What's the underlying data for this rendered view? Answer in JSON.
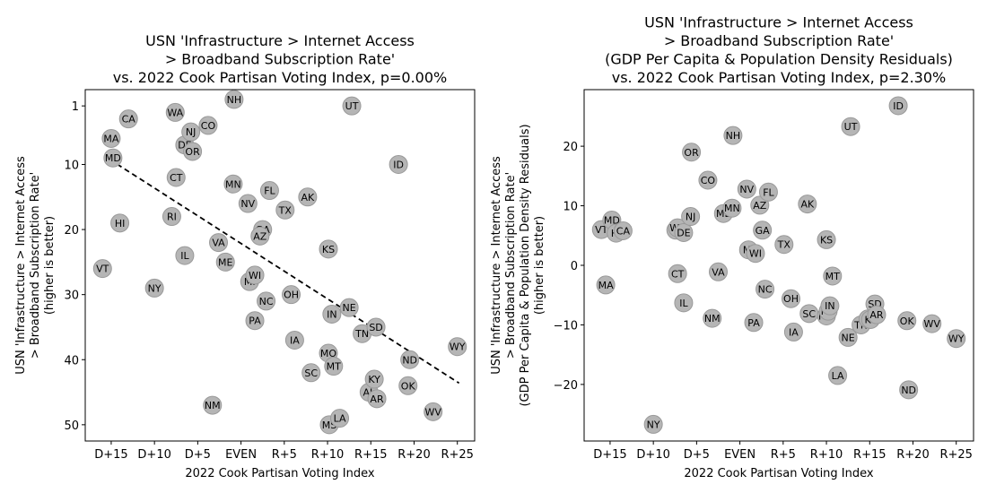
{
  "chart_data": [
    {
      "type": "scatter",
      "title": "USN 'Infrastructure > Internet Access\n> Broadband Subscription Rate'\nvs. 2022 Cook Partisan Voting Index, p=0.00%",
      "xlabel": "2022 Cook Partisan Voting Index",
      "ylabel": "USN 'Infrastructure > Internet Access\n> Broadband Subscription Rate'\n(higher is better)",
      "xlim": [
        -18,
        27
      ],
      "ylim": [
        52.5,
        -1.5
      ],
      "y_inverted": true,
      "xticks": [
        {
          "v": -15,
          "label": "D+15"
        },
        {
          "v": -10,
          "label": "D+10"
        },
        {
          "v": -5,
          "label": "D+5"
        },
        {
          "v": 0,
          "label": "EVEN"
        },
        {
          "v": 5,
          "label": "R+5"
        },
        {
          "v": 10,
          "label": "R+10"
        },
        {
          "v": 15,
          "label": "R+15"
        },
        {
          "v": 20,
          "label": "R+20"
        },
        {
          "v": 25,
          "label": "R+25"
        }
      ],
      "yticks": [
        {
          "v": 1,
          "label": "1"
        },
        {
          "v": 10,
          "label": "10"
        },
        {
          "v": 20,
          "label": "20"
        },
        {
          "v": 30,
          "label": "30"
        },
        {
          "v": 40,
          "label": "40"
        },
        {
          "v": 50,
          "label": "50"
        }
      ],
      "trendline": {
        "x": [
          -15.2,
          25.2
        ],
        "y": [
          9.2,
          43.6
        ]
      },
      "points": [
        {
          "label": "CA",
          "x": -13,
          "y": 3
        },
        {
          "label": "MA",
          "x": -15,
          "y": 6
        },
        {
          "label": "MD",
          "x": -14.8,
          "y": 9
        },
        {
          "label": "HI",
          "x": -14,
          "y": 19
        },
        {
          "label": "VT",
          "x": -16,
          "y": 26
        },
        {
          "label": "NY",
          "x": -10,
          "y": 29
        },
        {
          "label": "RI",
          "x": -8,
          "y": 18
        },
        {
          "label": "CT",
          "x": -7.5,
          "y": 12
        },
        {
          "label": "WA",
          "x": -7.6,
          "y": 2
        },
        {
          "label": "DE",
          "x": -6.5,
          "y": 7
        },
        {
          "label": "NJ",
          "x": -5.8,
          "y": 5
        },
        {
          "label": "OR",
          "x": -5.6,
          "y": 8
        },
        {
          "label": "IL",
          "x": -6.5,
          "y": 24
        },
        {
          "label": "CO",
          "x": -3.8,
          "y": 4
        },
        {
          "label": "NM",
          "x": -3.3,
          "y": 47
        },
        {
          "label": "VA",
          "x": -2.6,
          "y": 22
        },
        {
          "label": "ME",
          "x": -1.8,
          "y": 25
        },
        {
          "label": "MN",
          "x": -0.9,
          "y": 13
        },
        {
          "label": "NH",
          "x": -0.8,
          "y": 0
        },
        {
          "label": "NV",
          "x": 0.8,
          "y": 16
        },
        {
          "label": "MI",
          "x": 1.0,
          "y": 28
        },
        {
          "label": "WI",
          "x": 1.6,
          "y": 27
        },
        {
          "label": "PA",
          "x": 1.6,
          "y": 34
        },
        {
          "label": "GA",
          "x": 2.5,
          "y": 20
        },
        {
          "label": "AZ",
          "x": 2.2,
          "y": 21
        },
        {
          "label": "NC",
          "x": 2.9,
          "y": 31
        },
        {
          "label": "FL",
          "x": 3.3,
          "y": 14
        },
        {
          "label": "TX",
          "x": 5.1,
          "y": 17
        },
        {
          "label": "OH",
          "x": 5.8,
          "y": 30
        },
        {
          "label": "IA",
          "x": 6.2,
          "y": 37
        },
        {
          "label": "AK",
          "x": 7.7,
          "y": 15
        },
        {
          "label": "SC",
          "x": 8.1,
          "y": 42
        },
        {
          "label": "KS",
          "x": 10.1,
          "y": 23
        },
        {
          "label": "MO",
          "x": 10.1,
          "y": 39
        },
        {
          "label": "MS",
          "x": 10.2,
          "y": 50
        },
        {
          "label": "IN",
          "x": 10.5,
          "y": 33
        },
        {
          "label": "MT",
          "x": 10.7,
          "y": 41
        },
        {
          "label": "LA",
          "x": 11.4,
          "y": 49
        },
        {
          "label": "NE",
          "x": 12.5,
          "y": 32
        },
        {
          "label": "UT",
          "x": 12.8,
          "y": 1
        },
        {
          "label": "TN",
          "x": 14.0,
          "y": 36
        },
        {
          "label": "AL",
          "x": 14.8,
          "y": 45
        },
        {
          "label": "KY",
          "x": 15.4,
          "y": 43
        },
        {
          "label": "SD",
          "x": 15.6,
          "y": 35
        },
        {
          "label": "AR",
          "x": 15.7,
          "y": 46
        },
        {
          "label": "ID",
          "x": 18.2,
          "y": 10
        },
        {
          "label": "ND",
          "x": 19.5,
          "y": 40
        },
        {
          "label": "OK",
          "x": 19.3,
          "y": 44
        },
        {
          "label": "WV",
          "x": 22.2,
          "y": 48
        },
        {
          "label": "WY",
          "x": 25.0,
          "y": 38
        }
      ]
    },
    {
      "type": "scatter",
      "title": "USN 'Infrastructure > Internet Access\n> Broadband Subscription Rate'\n(GDP Per Capita & Population Density Residuals)\nvs. 2022 Cook Partisan Voting Index, p=2.30%",
      "xlabel": "2022 Cook Partisan Voting Index",
      "ylabel": "USN 'Infrastructure > Internet Access\n> Broadband Subscription Rate'\n(GDP Per Capita & Population Density Residuals)\n(higher is better)",
      "xlim": [
        -18,
        27
      ],
      "ylim": [
        -29.5,
        29.5
      ],
      "y_inverted": false,
      "xticks": [
        {
          "v": -15,
          "label": "D+15"
        },
        {
          "v": -10,
          "label": "D+10"
        },
        {
          "v": -5,
          "label": "D+5"
        },
        {
          "v": 0,
          "label": "EVEN"
        },
        {
          "v": 5,
          "label": "R+5"
        },
        {
          "v": 10,
          "label": "R+10"
        },
        {
          "v": 15,
          "label": "R+15"
        },
        {
          "v": 20,
          "label": "R+20"
        },
        {
          "v": 25,
          "label": "R+25"
        }
      ],
      "yticks": [
        {
          "v": 20,
          "label": "20"
        },
        {
          "v": 10,
          "label": "10"
        },
        {
          "v": 0,
          "label": "0"
        },
        {
          "v": -10,
          "label": "−10"
        },
        {
          "v": -20,
          "label": "−20"
        }
      ],
      "points": [
        {
          "label": "VT",
          "x": -16,
          "y": 6
        },
        {
          "label": "MD",
          "x": -14.8,
          "y": 7.6
        },
        {
          "label": "HI",
          "x": -14.3,
          "y": 5.4
        },
        {
          "label": "CA",
          "x": -13.5,
          "y": 5.8
        },
        {
          "label": "MA",
          "x": -15.5,
          "y": -3.3
        },
        {
          "label": "NY",
          "x": -10,
          "y": -26.7
        },
        {
          "label": "RI",
          "x": -7.4,
          "y": 5.9
        },
        {
          "label": "WA",
          "x": -7.2,
          "y": 6.3
        },
        {
          "label": "DE",
          "x": -6.5,
          "y": 5.5
        },
        {
          "label": "CT",
          "x": -7.2,
          "y": -1.4
        },
        {
          "label": "IL",
          "x": -6.5,
          "y": -6.3
        },
        {
          "label": "NJ",
          "x": -5.7,
          "y": 8.2
        },
        {
          "label": "OR",
          "x": -5.6,
          "y": 19
        },
        {
          "label": "NM",
          "x": -3.2,
          "y": -8.9
        },
        {
          "label": "CO",
          "x": -3.7,
          "y": 14.3
        },
        {
          "label": "VA",
          "x": -2.5,
          "y": -1.1
        },
        {
          "label": "ME",
          "x": -1.9,
          "y": 8.7
        },
        {
          "label": "NH",
          "x": -0.8,
          "y": 21.8
        },
        {
          "label": "MN",
          "x": -0.9,
          "y": 9.6
        },
        {
          "label": "NV",
          "x": 0.8,
          "y": 12.8
        },
        {
          "label": "MI",
          "x": 1.0,
          "y": 2.6
        },
        {
          "label": "WI",
          "x": 1.8,
          "y": 2.0
        },
        {
          "label": "PA",
          "x": 1.6,
          "y": -9.6
        },
        {
          "label": "AZ",
          "x": 2.3,
          "y": 10.1
        },
        {
          "label": "GA",
          "x": 2.6,
          "y": 5.9
        },
        {
          "label": "NC",
          "x": 2.9,
          "y": -4.0
        },
        {
          "label": "FL",
          "x": 3.3,
          "y": 12.3
        },
        {
          "label": "TX",
          "x": 5.1,
          "y": 3.5
        },
        {
          "label": "OH",
          "x": 5.9,
          "y": -5.6
        },
        {
          "label": "IA",
          "x": 6.2,
          "y": -11.2
        },
        {
          "label": "AK",
          "x": 7.8,
          "y": 10.3
        },
        {
          "label": "SC",
          "x": 8.0,
          "y": -8.1
        },
        {
          "label": "KS",
          "x": 10.0,
          "y": 4.3
        },
        {
          "label": "MO",
          "x": 10.0,
          "y": -8.5
        },
        {
          "label": "MS",
          "x": 10.2,
          "y": -7.7
        },
        {
          "label": "IN",
          "x": 10.4,
          "y": -6.8
        },
        {
          "label": "MT",
          "x": 10.7,
          "y": -1.8
        },
        {
          "label": "LA",
          "x": 11.3,
          "y": -18.5
        },
        {
          "label": "NE",
          "x": 12.5,
          "y": -12.1
        },
        {
          "label": "UT",
          "x": 12.8,
          "y": 23.3
        },
        {
          "label": "TN",
          "x": 14.0,
          "y": -10.0
        },
        {
          "label": "AL",
          "x": 14.8,
          "y": -9.0
        },
        {
          "label": "KY",
          "x": 15.1,
          "y": -9.1
        },
        {
          "label": "SD",
          "x": 15.6,
          "y": -6.5
        },
        {
          "label": "AR",
          "x": 15.8,
          "y": -8.3
        },
        {
          "label": "ID",
          "x": 18.3,
          "y": 26.8
        },
        {
          "label": "ND",
          "x": 19.5,
          "y": -20.9
        },
        {
          "label": "OK",
          "x": 19.3,
          "y": -9.3
        },
        {
          "label": "WV",
          "x": 22.2,
          "y": -9.8
        },
        {
          "label": "WY",
          "x": 25.0,
          "y": -12.3
        }
      ]
    }
  ]
}
